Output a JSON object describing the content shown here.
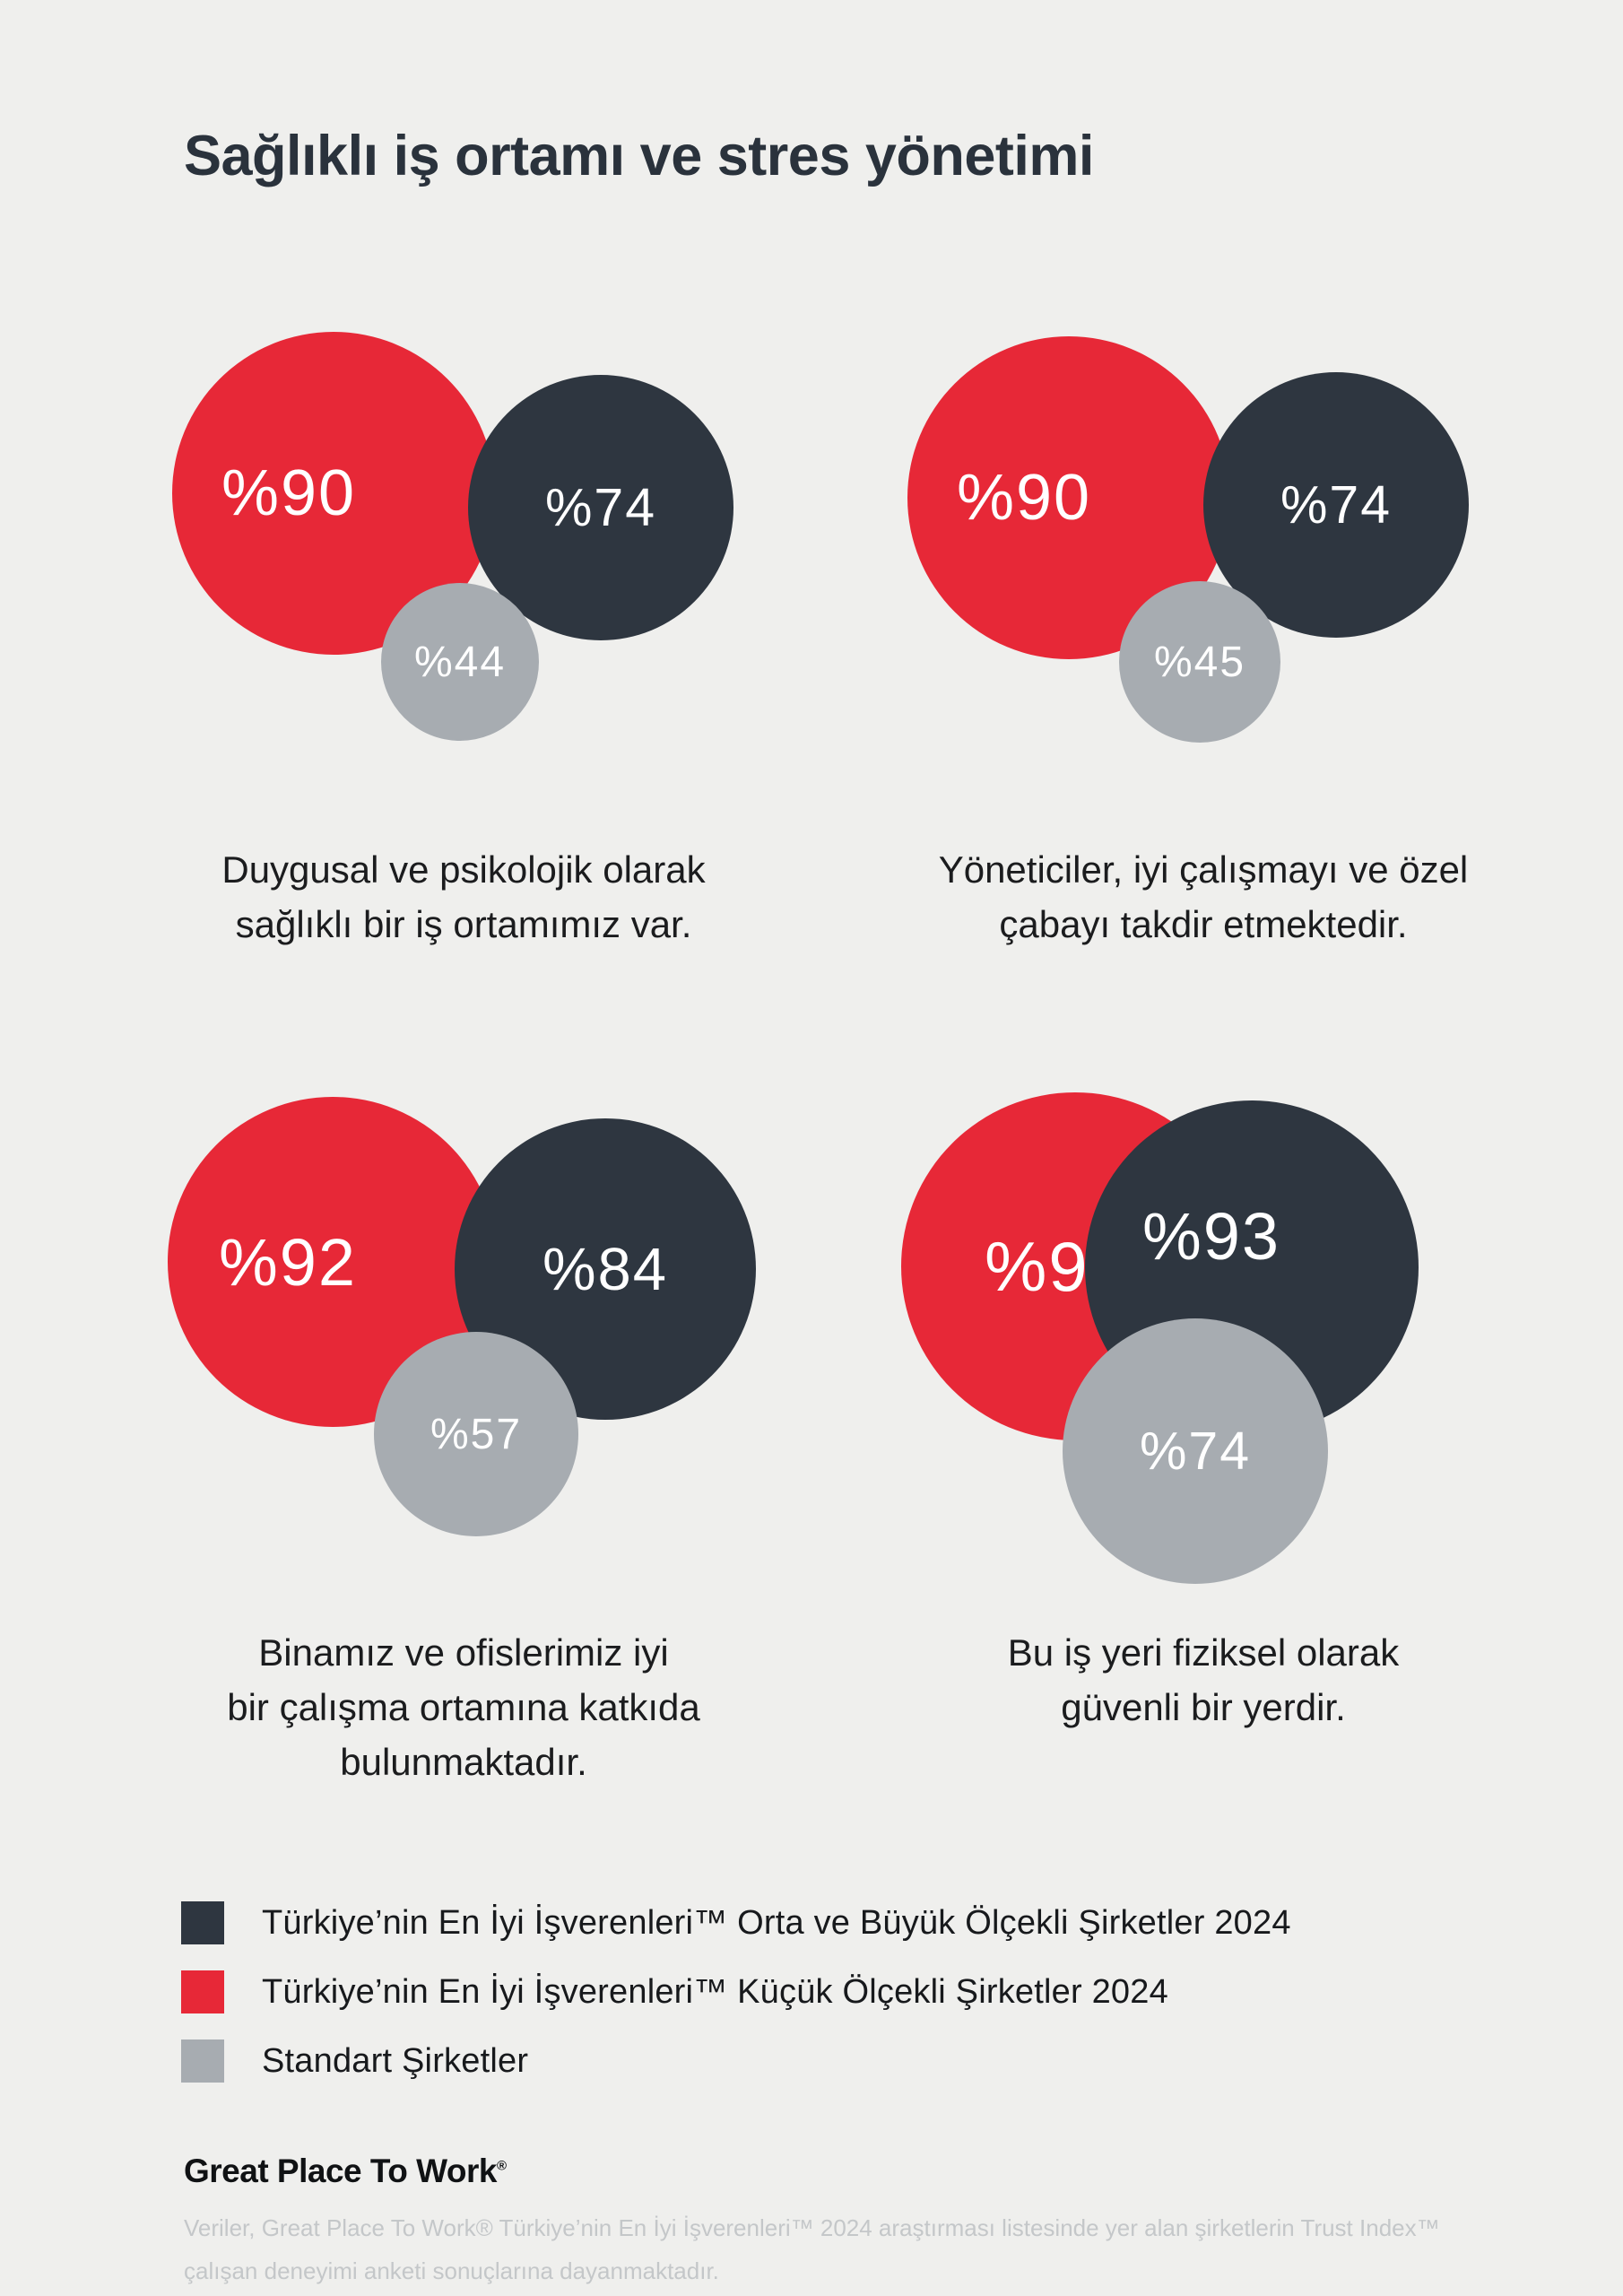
{
  "header": {
    "title": "Sağlıklı iş ortamı ve stres yönetimi"
  },
  "chart_data": {
    "type": "bubble",
    "legend": [
      {
        "key": "best_large",
        "label": "Türkiye’nin En İyi İşverenleri™ Orta ve Büyük Ölçekli Şirketler 2024",
        "color": "#2E3640"
      },
      {
        "key": "best_small",
        "label": "Türkiye’nin En İyi İşverenleri™ Küçük Ölçekli Şirketler 2024",
        "color": "#E72837"
      },
      {
        "key": "standard",
        "label": "Standart Şirketler",
        "color": "#A7ACB1"
      }
    ],
    "groups": [
      {
        "caption_lines": [
          "Duygusal ve psikolojik olarak",
          "sağlıklı bir iş ortamımız var."
        ],
        "values": {
          "best_small": 90,
          "best_large": 74,
          "standard": 44
        },
        "labels": {
          "best_small": "%90",
          "best_large": "%74",
          "standard": "%44"
        }
      },
      {
        "caption_lines": [
          "Yöneticiler, iyi çalışmayı ve özel",
          "çabayı takdir etmektedir."
        ],
        "values": {
          "best_small": 90,
          "best_large": 74,
          "standard": 45
        },
        "labels": {
          "best_small": "%90",
          "best_large": "%74",
          "standard": "%45"
        }
      },
      {
        "caption_lines": [
          "Binamız ve ofislerimiz iyi",
          "bir çalışma ortamına katkıda",
          "bulunmaktadır."
        ],
        "values": {
          "best_small": 92,
          "best_large": 84,
          "standard": 57
        },
        "labels": {
          "best_small": "%92",
          "best_large": "%84",
          "standard": "%57"
        }
      },
      {
        "caption_lines": [
          "Bu iş yeri fiziksel olarak",
          "güvenli bir yerdir."
        ],
        "values": {
          "best_small": 97,
          "best_large": 93,
          "standard": 74
        },
        "labels": {
          "best_small": "%97",
          "best_large": "%93",
          "standard": "%74"
        }
      }
    ]
  },
  "footer": {
    "logo_text": "Great Place To Work",
    "registered_mark": "®",
    "disclaimer_lines": [
      "Veriler, Great Place To Work® Türkiye’nin En İyi İşverenleri™ 2024 araştırması listesinde yer alan şirketlerin Trust Index™",
      "çalışan deneyimi anketi sonuçlarına dayanmaktadır."
    ]
  },
  "colors": {
    "background": "#EFEFED",
    "title": "#2A323C",
    "caption": "#1B1C1E",
    "disclaimer": "#C4C7C9"
  }
}
